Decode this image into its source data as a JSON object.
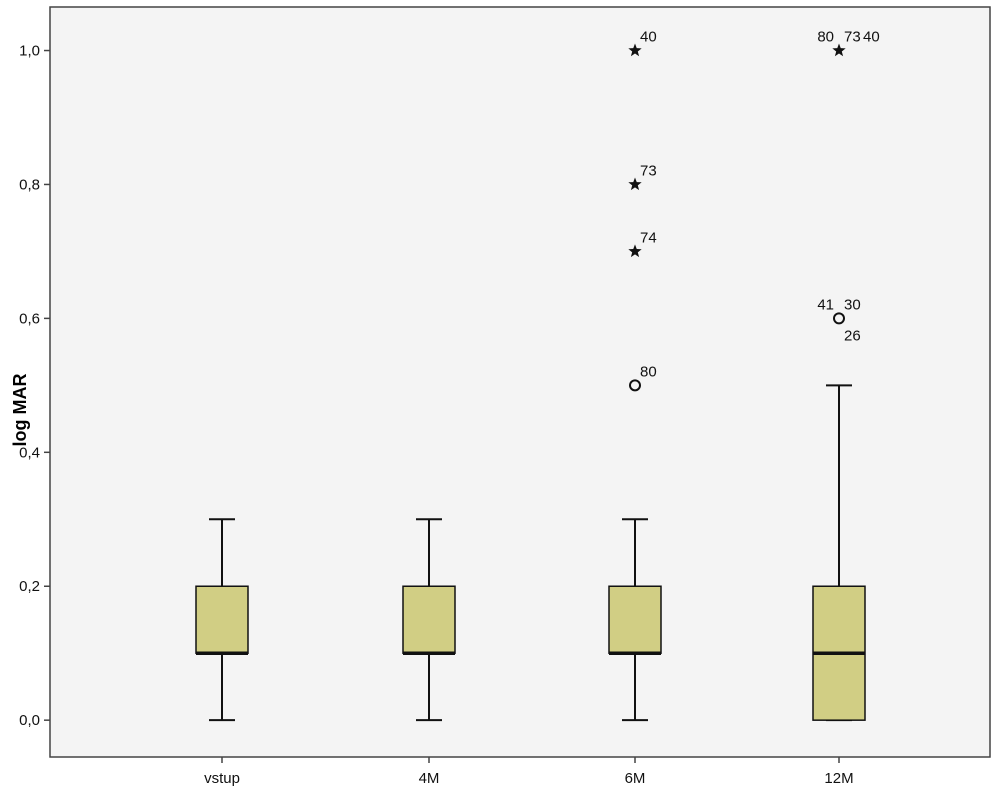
{
  "chart_data": {
    "type": "boxplot",
    "title": "",
    "xlabel": "",
    "ylabel": "log MAR",
    "ylim": [
      -0.055,
      1.065
    ],
    "yticks": [
      0.0,
      0.2,
      0.4,
      0.6,
      0.8,
      1.0
    ],
    "ytick_labels": [
      "0,0",
      "0,2",
      "0,4",
      "0,6",
      "0,8",
      "1,0"
    ],
    "categories": [
      "vstup",
      "4M",
      "6M",
      "12M"
    ],
    "grid": false,
    "legend": "none",
    "box_fill": "#d1ce84",
    "background": "#f4f4f4",
    "boxes": [
      {
        "category": "vstup",
        "whisker_low": 0.0,
        "q1": 0.1,
        "median": 0.1,
        "q3": 0.2,
        "whisker_high": 0.3
      },
      {
        "category": "4M",
        "whisker_low": 0.0,
        "q1": 0.1,
        "median": 0.1,
        "q3": 0.2,
        "whisker_high": 0.3
      },
      {
        "category": "6M",
        "whisker_low": 0.0,
        "q1": 0.1,
        "median": 0.1,
        "q3": 0.2,
        "whisker_high": 0.3
      },
      {
        "category": "12M",
        "whisker_low": 0.0,
        "q1": 0.0,
        "median": 0.1,
        "q3": 0.2,
        "whisker_high": 0.5
      }
    ],
    "outliers": [
      {
        "category": "6M",
        "value": 1.0,
        "marker": "star",
        "labels": [
          {
            "text": "40",
            "pos": "right"
          }
        ]
      },
      {
        "category": "6M",
        "value": 0.8,
        "marker": "star",
        "labels": [
          {
            "text": "73",
            "pos": "right"
          }
        ]
      },
      {
        "category": "6M",
        "value": 0.7,
        "marker": "star",
        "labels": [
          {
            "text": "74",
            "pos": "right"
          }
        ]
      },
      {
        "category": "6M",
        "value": 0.5,
        "marker": "circle",
        "labels": [
          {
            "text": "80",
            "pos": "right"
          }
        ]
      },
      {
        "category": "12M",
        "value": 1.0,
        "marker": "star",
        "labels": [
          {
            "text": "80",
            "pos": "left"
          },
          {
            "text": "73",
            "pos": "right"
          },
          {
            "text": "40",
            "pos": "right2"
          }
        ]
      },
      {
        "category": "12M",
        "value": 0.6,
        "marker": "circle",
        "labels": [
          {
            "text": "41",
            "pos": "left"
          },
          {
            "text": "30",
            "pos": "right"
          },
          {
            "text": "26",
            "pos": "below-right"
          }
        ]
      }
    ]
  }
}
